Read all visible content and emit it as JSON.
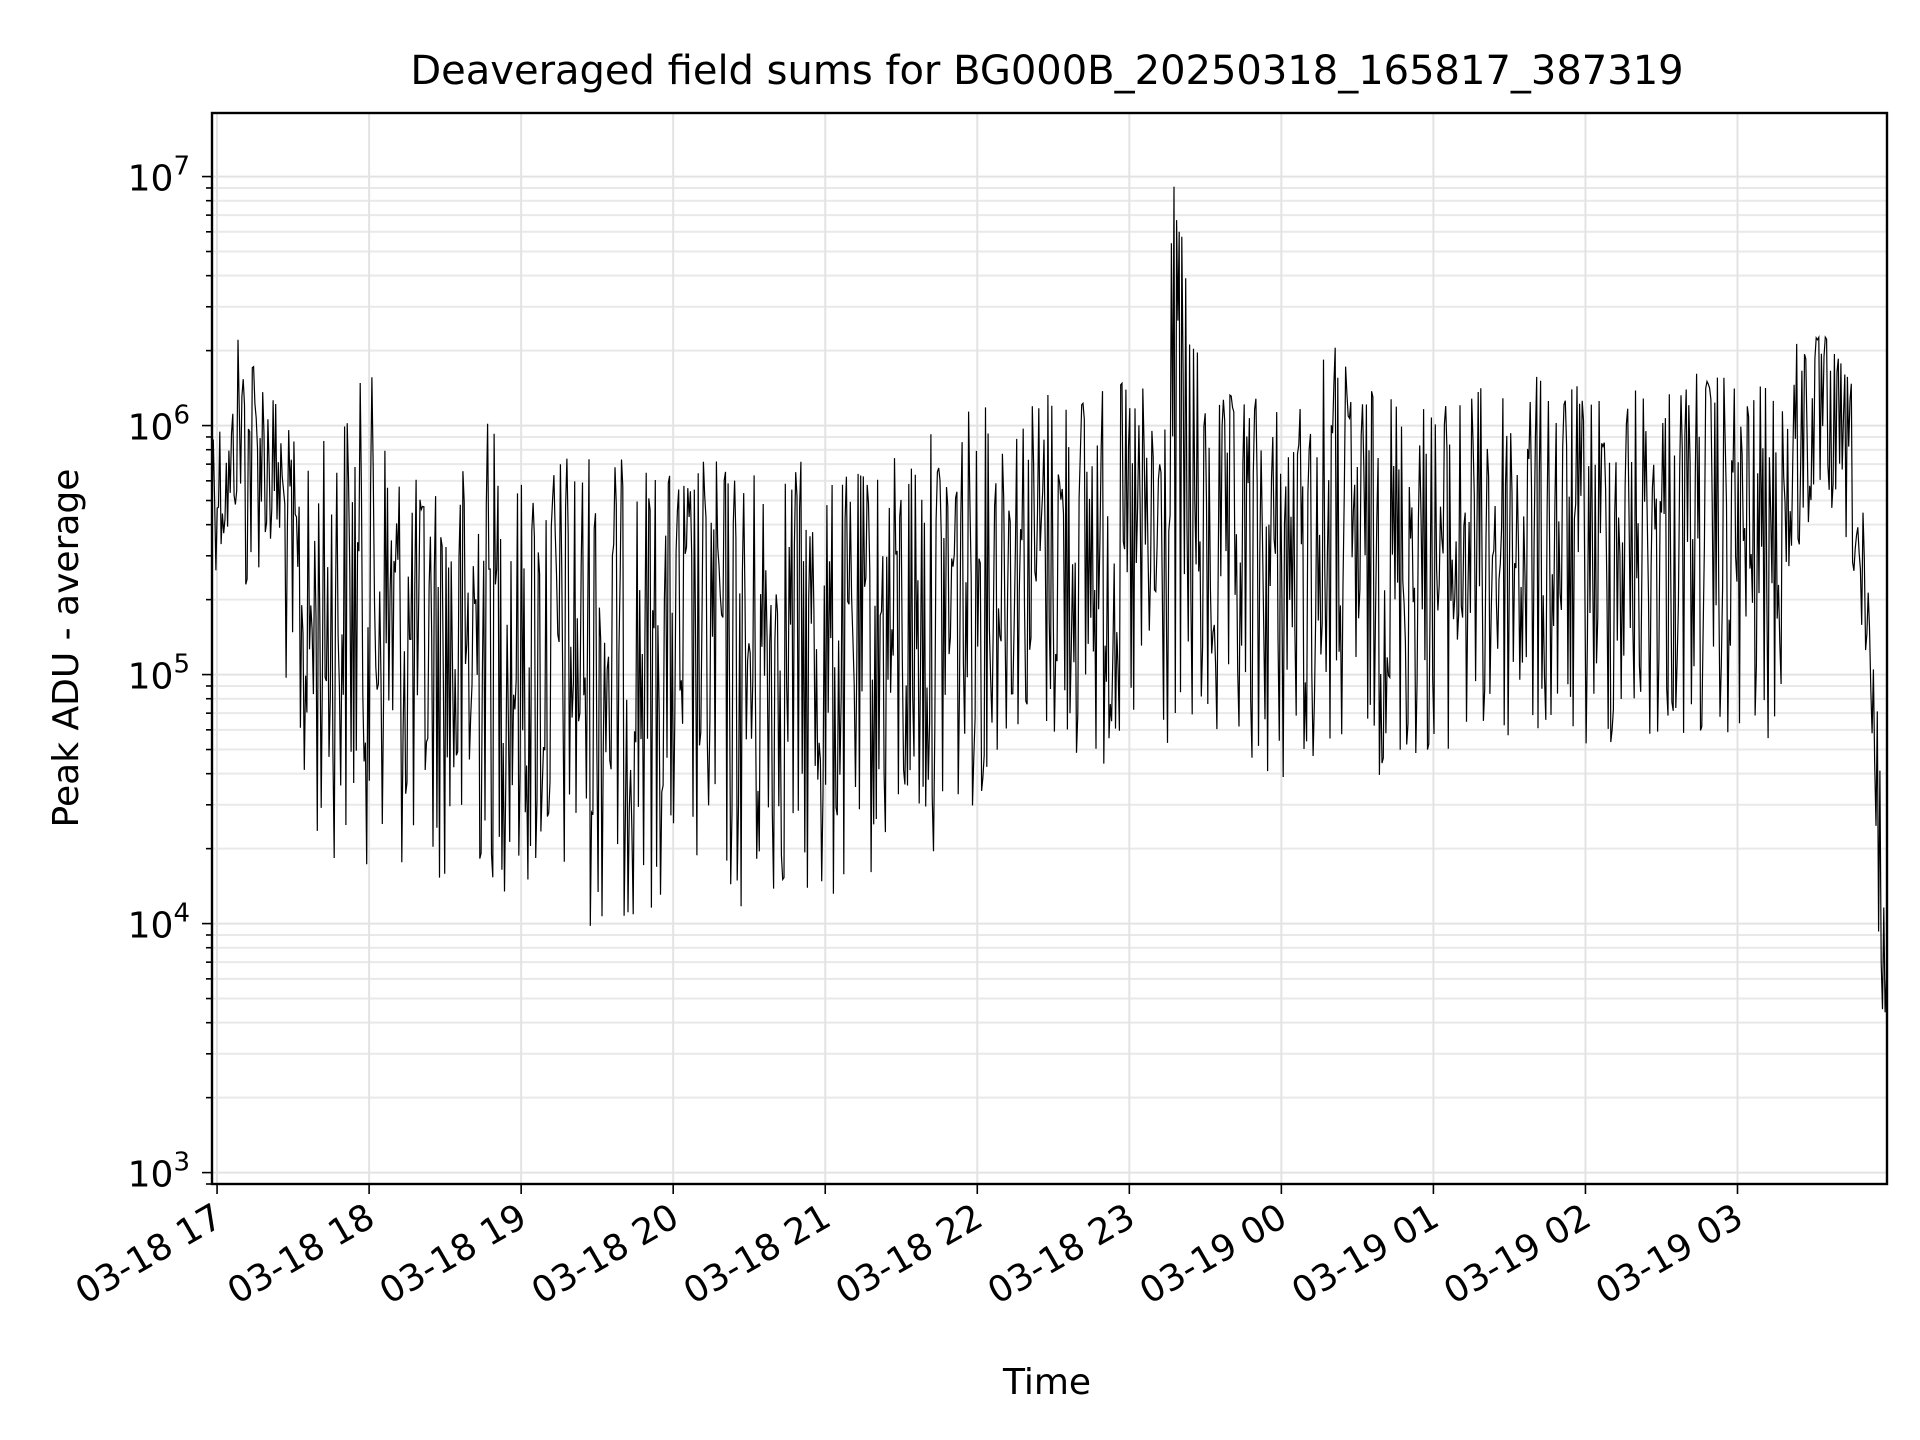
{
  "chart_data": {
    "type": "line",
    "title": "Deaveraged field sums for BG000B_20250318_165817_387319",
    "xlabel": "Time",
    "ylabel": "Peak ADU - average",
    "yscale": "log",
    "ylim": [
      900,
      18000000
    ],
    "xlim": [
      "2025-03-18 16:58",
      "2025-03-19 03:59"
    ],
    "grid": true,
    "line_color": "#000000",
    "x_ticks": [
      {
        "label": "03-18 17",
        "time": "2025-03-18 17:00"
      },
      {
        "label": "03-18 18",
        "time": "2025-03-18 18:00"
      },
      {
        "label": "03-18 19",
        "time": "2025-03-18 19:00"
      },
      {
        "label": "03-18 20",
        "time": "2025-03-18 20:00"
      },
      {
        "label": "03-18 21",
        "time": "2025-03-18 21:00"
      },
      {
        "label": "03-18 22",
        "time": "2025-03-18 22:00"
      },
      {
        "label": "03-18 23",
        "time": "2025-03-18 23:00"
      },
      {
        "label": "03-19 00",
        "time": "2025-03-19 00:00"
      },
      {
        "label": "03-19 01",
        "time": "2025-03-19 01:00"
      },
      {
        "label": "03-19 02",
        "time": "2025-03-19 02:00"
      },
      {
        "label": "03-19 03",
        "time": "2025-03-19 03:00"
      }
    ],
    "y_ticks": [
      {
        "base": "10",
        "exp": "3",
        "value": 1000
      },
      {
        "base": "10",
        "exp": "4",
        "value": 10000
      },
      {
        "base": "10",
        "exp": "5",
        "value": 100000
      },
      {
        "base": "10",
        "exp": "6",
        "value": 1000000
      },
      {
        "base": "10",
        "exp": "7",
        "value": 10000000
      }
    ],
    "series": [
      {
        "x": [
          "2025-03-18 16:58",
          "2025-03-18 17:05",
          "2025-03-18 17:08",
          "2025-03-18 17:12",
          "2025-03-18 17:18",
          "2025-03-18 17:25",
          "2025-03-18 17:28",
          "2025-03-18 17:35",
          "2025-03-18 17:45",
          "2025-03-18 18:00",
          "2025-03-18 18:15",
          "2025-03-18 18:30",
          "2025-03-18 18:38",
          "2025-03-18 18:45",
          "2025-03-18 19:00",
          "2025-03-18 19:15",
          "2025-03-18 19:30",
          "2025-03-18 19:45",
          "2025-03-18 20:00",
          "2025-03-18 20:15",
          "2025-03-18 20:30",
          "2025-03-18 20:45",
          "2025-03-18 21:00",
          "2025-03-18 21:15",
          "2025-03-18 21:30",
          "2025-03-18 21:45",
          "2025-03-18 22:00",
          "2025-03-18 22:15",
          "2025-03-18 22:30",
          "2025-03-18 22:45",
          "2025-03-18 23:00",
          "2025-03-18 23:15",
          "2025-03-18 23:17",
          "2025-03-18 23:30",
          "2025-03-18 23:45",
          "2025-03-19 00:00",
          "2025-03-19 00:15",
          "2025-03-19 00:18",
          "2025-03-19 00:30",
          "2025-03-19 00:45",
          "2025-03-19 01:00",
          "2025-03-19 01:15",
          "2025-03-19 01:30",
          "2025-03-19 01:45",
          "2025-03-19 02:00",
          "2025-03-19 02:15",
          "2025-03-19 02:30",
          "2025-03-19 02:45",
          "2025-03-19 03:00",
          "2025-03-19 03:15",
          "2025-03-19 03:25",
          "2025-03-19 03:35",
          "2025-03-19 03:45",
          "2025-03-19 03:50",
          "2025-03-19 03:55",
          "2025-03-19 03:59"
        ],
        "y_low": [
          250000,
          300000,
          400000,
          150000,
          300000,
          200000,
          60000,
          20000,
          18000,
          17000,
          15000,
          14000,
          8000,
          14000,
          12000,
          11000,
          9000,
          10000,
          13000,
          12000,
          9000,
          13000,
          10000,
          14000,
          16000,
          20000,
          30000,
          60000,
          45000,
          40000,
          35000,
          40000,
          40000,
          40000,
          30000,
          35000,
          40000,
          38000,
          40000,
          38000,
          45000,
          45000,
          45000,
          45000,
          45000,
          48000,
          50000,
          50000,
          45000,
          50000,
          300000,
          400000,
          300000,
          30000,
          7000,
          3000
        ],
        "y_high": [
          1300000,
          900000,
          2500000,
          2500000,
          1800000,
          1200000,
          1000000,
          650000,
          1000000,
          1700000,
          600000,
          650000,
          700000,
          1200000,
          600000,
          800000,
          800000,
          700000,
          650000,
          750000,
          650000,
          800000,
          600000,
          650000,
          800000,
          1000000,
          1200000,
          1200000,
          1500000,
          1400000,
          1500000,
          1400000,
          11000000,
          1200000,
          1400000,
          1200000,
          1300000,
          2600000,
          1400000,
          1400000,
          1200000,
          1400000,
          1500000,
          1600000,
          1400000,
          1500000,
          1500000,
          1700000,
          1500000,
          1400000,
          2400000,
          2300000,
          1500000,
          400000,
          100000,
          6000
        ]
      }
    ]
  }
}
